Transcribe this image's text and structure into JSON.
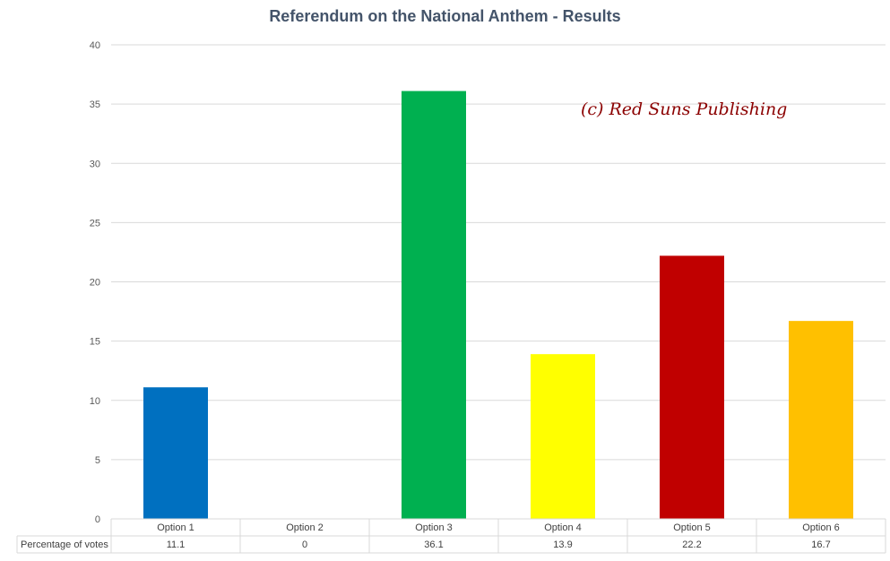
{
  "chart_data": {
    "type": "bar",
    "title": "Referendum on the National Anthem - Results",
    "categories": [
      "Option 1",
      "Option 2",
      "Option 3",
      "Option 4",
      "Option 5",
      "Option 6"
    ],
    "series": [
      {
        "name": "Percentage of votes",
        "values": [
          11.1,
          0,
          36.1,
          13.9,
          22.2,
          16.7
        ]
      }
    ],
    "value_labels": [
      "11.1",
      "0",
      "36.1",
      "13.9",
      "22.2",
      "16.7"
    ],
    "bar_colors": [
      "#0070c0",
      "#7f7f7f",
      "#00b050",
      "#ffff00",
      "#c00000",
      "#ffc000"
    ],
    "ylim": [
      0,
      40
    ],
    "yticks": [
      "0",
      "5",
      "10",
      "15",
      "20",
      "25",
      "30",
      "35",
      "40"
    ],
    "grid": true,
    "legend": "data table below chart",
    "annotation": "(c) Red Suns Publishing"
  }
}
